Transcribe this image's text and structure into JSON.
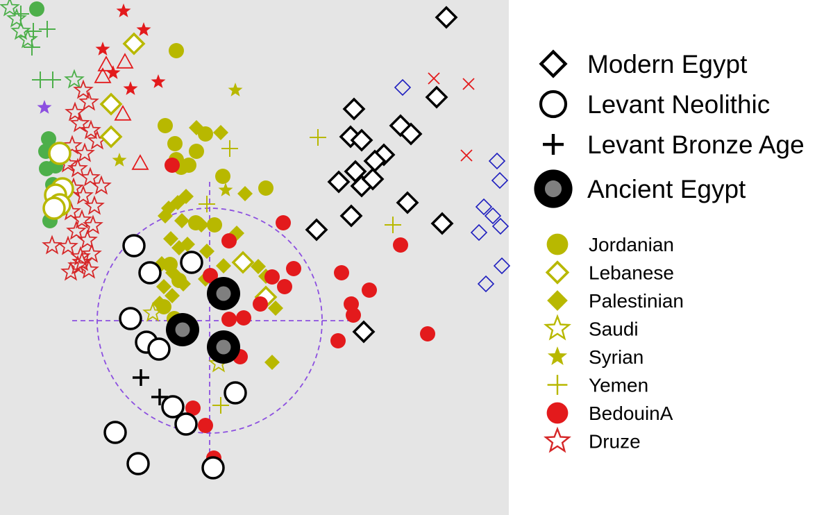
{
  "colors": {
    "panel_bg": "#e5e5e5",
    "olive": "#b8b800",
    "red": "#e31a1c",
    "druze": "#d62728",
    "green": "#4daf4a",
    "blue": "#1f1fbf",
    "purple": "#8c4fe0",
    "black": "#000000",
    "gray_core": "#7f7f7f"
  },
  "chart_data": {
    "type": "scatter",
    "title": "",
    "xlabel": "",
    "ylabel": "",
    "xlim": [
      0,
      733
    ],
    "ylim": [
      0,
      742
    ],
    "grid": false,
    "legend_position": "right",
    "target_circle": {
      "cx": 302,
      "cy": 462,
      "r": 162
    },
    "major_legend": [
      {
        "label": "Modern Egypt",
        "marker": "diamond-open"
      },
      {
        "label": "Levant Neolithic",
        "marker": "circle-open"
      },
      {
        "label": "Levant Bronze Age",
        "marker": "plus"
      },
      {
        "label": "Ancient Egypt",
        "marker": "circle-ring"
      }
    ],
    "minor_legend": [
      {
        "label": "Jordanian",
        "marker": "circle-filled",
        "color": "#b8b800"
      },
      {
        "label": "Lebanese",
        "marker": "diamond-open",
        "color": "#b8b800"
      },
      {
        "label": "Palestinian",
        "marker": "diamond-filled",
        "color": "#b8b800"
      },
      {
        "label": "Saudi",
        "marker": "star-open",
        "color": "#b8b800"
      },
      {
        "label": "Syrian",
        "marker": "star-filled",
        "color": "#b8b800"
      },
      {
        "label": "Yemen",
        "marker": "plus",
        "color": "#b8b800"
      },
      {
        "label": "BedouinA",
        "marker": "circle-filled",
        "color": "#e31a1c"
      },
      {
        "label": "Druze",
        "marker": "star-open",
        "color": "#d62728"
      }
    ],
    "series": [
      {
        "name": "Ancient Egypt",
        "marker": "circle-ring",
        "color": "#000000",
        "x": [
          322,
          263,
          322
        ],
        "y": [
          423,
          475,
          500
        ]
      },
      {
        "name": "Levant Neolithic",
        "marker": "circle-open",
        "color": "#000000",
        "x": [
          193,
          216,
          276,
          188,
          211,
          229,
          249,
          268,
          339,
          166,
          199,
          307
        ],
        "y": [
          354,
          393,
          378,
          459,
          493,
          503,
          586,
          611,
          566,
          623,
          668,
          674
        ]
      },
      {
        "name": "Levant Bronze Age",
        "marker": "plus",
        "color": "#000000",
        "x": [
          203,
          230
        ],
        "y": [
          544,
          572
        ]
      },
      {
        "name": "Modern Egypt",
        "marker": "diamond-open",
        "color": "#000000",
        "x": [
          643,
          629,
          510,
          577,
          592,
          505,
          521,
          553,
          540,
          488,
          512,
          521,
          537,
          587,
          456,
          506,
          637,
          524
        ],
        "y": [
          25,
          140,
          157,
          181,
          193,
          197,
          202,
          223,
          232,
          262,
          247,
          268,
          258,
          292,
          331,
          311,
          322,
          478
        ]
      },
      {
        "name": "Jordanian",
        "marker": "circle-filled",
        "color": "#b8b800",
        "x": [
          254,
          238,
          252,
          283,
          296,
          254,
          272,
          261,
          321,
          383,
          282,
          309,
          245,
          258,
          236,
          251
        ],
        "y": [
          73,
          181,
          207,
          218,
          193,
          230,
          238,
          241,
          254,
          271,
          321,
          324,
          381,
          404,
          442,
          459
        ]
      },
      {
        "name": "Lebanese",
        "marker": "diamond-open",
        "color": "#b8b800",
        "x": [
          160,
          160,
          350,
          383,
          193
        ],
        "y": [
          150,
          197,
          378,
          428,
          63
        ]
      },
      {
        "name": "Palestinian",
        "marker": "diamond-filled",
        "color": "#b8b800",
        "x": [
          318,
          283,
          353,
          268,
          256,
          243,
          238,
          262,
          290,
          341,
          246,
          258,
          270,
          298,
          322,
          233,
          249,
          264,
          296,
          236,
          248,
          230,
          372,
          397,
          392,
          383
        ],
        "y": [
          191,
          184,
          279,
          283,
          292,
          300,
          311,
          318,
          324,
          336,
          344,
          357,
          352,
          362,
          383,
          380,
          393,
          409,
          402,
          413,
          426,
          437,
          384,
          444,
          522,
          398
        ]
      },
      {
        "name": "Syrian",
        "marker": "star-filled",
        "color": "#b8b800",
        "x": [
          339,
          172,
          325
        ],
        "y": [
          130,
          231,
          274
        ]
      },
      {
        "name": "Yemen",
        "marker": "plus",
        "color": "#b8b800",
        "x": [
          331,
          458,
          566,
          298,
          318
        ],
        "y": [
          214,
          198,
          324,
          294,
          584
        ]
      },
      {
        "name": "Saudi",
        "marker": "star-open",
        "color": "#b8b800",
        "x": [
          220,
          315
        ],
        "y": [
          451,
          524
        ]
      },
      {
        "name": "BedouinA",
        "marker": "circle-filled",
        "color": "#e31a1c",
        "x": [
          408,
          330,
          577,
          423,
          392,
          492,
          410,
          532,
          506,
          375,
          351,
          509,
          616,
          487,
          346,
          278,
          296,
          308,
          248,
          303,
          330
        ],
        "y": [
          321,
          347,
          353,
          387,
          399,
          393,
          413,
          418,
          438,
          438,
          458,
          454,
          481,
          491,
          514,
          588,
          613,
          660,
          238,
          397,
          460
        ]
      },
      {
        "name": "Druze",
        "marker": "star-open",
        "color": "#d62728",
        "x": [
          120,
          128,
          108,
          115,
          131,
          140,
          104,
          122,
          98,
          112,
          130,
          146,
          106,
          120,
          136,
          102,
          118,
          134,
          110,
          126,
          98,
          116,
          75,
          112,
          128,
          102,
          118,
          132
        ],
        "y": [
          130,
          147,
          162,
          178,
          188,
          203,
          210,
          221,
          236,
          243,
          256,
          268,
          271,
          282,
          297,
          305,
          317,
          325,
          333,
          346,
          355,
          370,
          354,
          383,
          389,
          392,
          378,
          366
        ]
      },
      {
        "name": "Druze filled",
        "marker": "star-filled",
        "color": "#e31a1c",
        "x": [
          178,
          148,
          228,
          188,
          207,
          163
        ],
        "y": [
          16,
          71,
          118,
          128,
          43,
          105
        ]
      },
      {
        "name": "Druze triangle",
        "marker": "triangle-open",
        "color": "#e31a1c",
        "x": [
          153,
          180,
          177,
          148,
          202
        ],
        "y": [
          93,
          89,
          164,
          110,
          235
        ]
      },
      {
        "name": "Green cluster",
        "marker": "circle-filled",
        "color": "#4daf4a",
        "x": [
          53,
          70,
          66,
          80,
          67,
          76,
          72
        ],
        "y": [
          13,
          200,
          218,
          239,
          243,
          266,
          318
        ]
      },
      {
        "name": "Green cross",
        "marker": "plus",
        "color": "#4daf4a",
        "x": [
          30,
          48,
          68,
          46,
          58,
          76
        ],
        "y": [
          20,
          45,
          42,
          68,
          115,
          115
        ]
      },
      {
        "name": "Green star",
        "marker": "star-open",
        "color": "#4daf4a",
        "x": [
          14,
          24,
          30,
          40,
          107
        ],
        "y": [
          11,
          27,
          45,
          57,
          115
        ]
      },
      {
        "name": "Purple star",
        "marker": "star-filled",
        "color": "#8c4fe0",
        "x": [
          64
        ],
        "y": [
          155
        ]
      },
      {
        "name": "Olive open circles",
        "marker": "circle-open",
        "color": "#b8b800",
        "x": [
          86,
          90,
          80,
          86,
          78
        ],
        "y": [
          221,
          272,
          281,
          295,
          300
        ]
      },
      {
        "name": "Blue diamonds",
        "marker": "diamond-open-small",
        "color": "#1f1fbf",
        "x": [
          580,
          716,
          720,
          697,
          710,
          721,
          690,
          723,
          700
        ],
        "y": [
          126,
          232,
          260,
          298,
          311,
          326,
          335,
          383,
          409
        ]
      },
      {
        "name": "Red x",
        "marker": "x",
        "color": "#e31a1c",
        "x": [
          625,
          675,
          672
        ],
        "y": [
          113,
          121,
          224
        ]
      }
    ]
  }
}
